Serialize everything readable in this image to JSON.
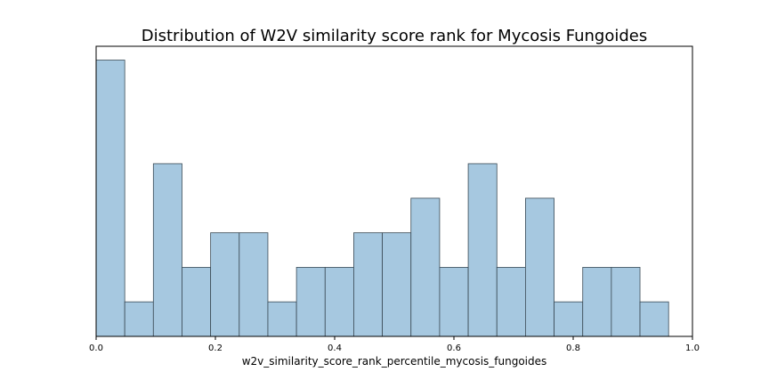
{
  "chart_data": {
    "type": "bar",
    "title": "Distribution of W2V similarity score rank for Mycosis Fungoides",
    "xlabel": "w2v_similarity_score_rank_percentile_mycosis_fungoides",
    "ylabel": "",
    "xlim": [
      0.0,
      1.0
    ],
    "ylim": [
      0,
      8.4
    ],
    "xticks": [
      0.0,
      0.2,
      0.4,
      0.6,
      0.8,
      1.0
    ],
    "xtick_labels": [
      "0.0",
      "0.2",
      "0.4",
      "0.6",
      "0.8",
      "1.0"
    ],
    "y_axis_visible": false,
    "grid": false,
    "bins": [
      {
        "x0": 0.0,
        "x1": 0.048,
        "count": 8
      },
      {
        "x0": 0.048,
        "x1": 0.096,
        "count": 1
      },
      {
        "x0": 0.096,
        "x1": 0.144,
        "count": 5
      },
      {
        "x0": 0.144,
        "x1": 0.192,
        "count": 2
      },
      {
        "x0": 0.192,
        "x1": 0.24,
        "count": 3
      },
      {
        "x0": 0.24,
        "x1": 0.288,
        "count": 3
      },
      {
        "x0": 0.288,
        "x1": 0.336,
        "count": 1
      },
      {
        "x0": 0.336,
        "x1": 0.384,
        "count": 2
      },
      {
        "x0": 0.384,
        "x1": 0.432,
        "count": 2
      },
      {
        "x0": 0.432,
        "x1": 0.48,
        "count": 3
      },
      {
        "x0": 0.48,
        "x1": 0.528,
        "count": 3
      },
      {
        "x0": 0.528,
        "x1": 0.576,
        "count": 4
      },
      {
        "x0": 0.576,
        "x1": 0.624,
        "count": 2
      },
      {
        "x0": 0.624,
        "x1": 0.672,
        "count": 5
      },
      {
        "x0": 0.672,
        "x1": 0.72,
        "count": 2
      },
      {
        "x0": 0.72,
        "x1": 0.768,
        "count": 4
      },
      {
        "x0": 0.768,
        "x1": 0.816,
        "count": 1
      },
      {
        "x0": 0.816,
        "x1": 0.864,
        "count": 2
      },
      {
        "x0": 0.864,
        "x1": 0.912,
        "count": 2
      },
      {
        "x0": 0.912,
        "x1": 0.96,
        "count": 1
      }
    ],
    "colors": {
      "bar_fill": "#a6c8e0",
      "bar_edge": "#3a4a55",
      "axis": "#000000"
    }
  }
}
